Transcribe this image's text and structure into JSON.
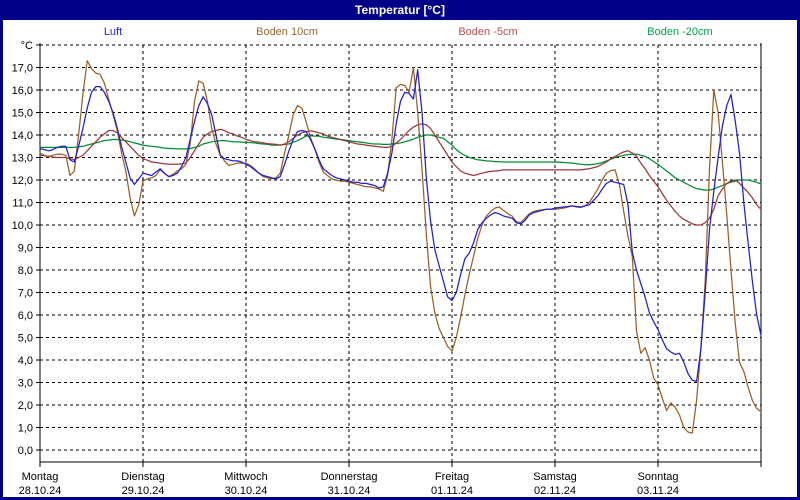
{
  "window": {
    "title": "Temperatur [°C]"
  },
  "colors": {
    "frame": "#000087",
    "titlebar_text": "#ffffff",
    "plot_background": "#ffffff",
    "grid": "#000000"
  },
  "chart_data": {
    "type": "line",
    "title": "Temperatur [°C]",
    "grid": "dashed",
    "legend_position": "top",
    "sampling_hours": 1,
    "y_axis": {
      "unit": "°C",
      "top_value": 18,
      "bottom_value": -0.5,
      "gridline_step": 1,
      "ticks": [
        "17,0",
        "16,0",
        "15,0",
        "14,0",
        "13,0",
        "12,0",
        "11,0",
        "10,0",
        "9,0",
        "8,0",
        "7,0",
        "6,0",
        "5,0",
        "4,0",
        "3,0",
        "2,0",
        "1,0",
        "0,0"
      ]
    },
    "x_axis": {
      "days": [
        {
          "name": "Montag",
          "date": "28.10.24"
        },
        {
          "name": "Dienstag",
          "date": "29.10.24"
        },
        {
          "name": "Mittwoch",
          "date": "30.10.24"
        },
        {
          "name": "Donnerstag",
          "date": "31.10.24"
        },
        {
          "name": "Freitag",
          "date": "01.11.24"
        },
        {
          "name": "Samstag",
          "date": "02.11.24"
        },
        {
          "name": "Sonntag",
          "date": "03.11.24"
        }
      ]
    },
    "series": [
      {
        "name": "Luft",
        "color": "#2020d0",
        "legend_color": "#2222ee",
        "values": [
          13.4,
          13.35,
          13.3,
          13.35,
          13.45,
          13.5,
          13.5,
          12.9,
          12.8,
          13.5,
          14.3,
          15.2,
          15.9,
          16.15,
          16.15,
          15.9,
          15.5,
          15.0,
          14.3,
          13.5,
          12.8,
          12.1,
          11.8,
          12.05,
          12.3,
          12.25,
          12.2,
          12.35,
          12.5,
          12.3,
          12.15,
          12.2,
          12.3,
          12.6,
          13.0,
          13.8,
          14.6,
          15.3,
          15.7,
          15.4,
          14.9,
          14.0,
          13.1,
          12.95,
          12.9,
          12.85,
          12.85,
          12.8,
          12.7,
          12.6,
          12.45,
          12.3,
          12.2,
          12.15,
          12.1,
          12.05,
          12.15,
          12.7,
          13.3,
          13.8,
          14.15,
          14.2,
          14.15,
          13.8,
          13.4,
          12.9,
          12.5,
          12.35,
          12.2,
          12.1,
          12.05,
          12.0,
          11.95,
          11.9,
          11.9,
          11.85,
          11.85,
          11.8,
          11.75,
          11.65,
          11.7,
          12.3,
          13.2,
          14.5,
          15.5,
          15.9,
          15.85,
          15.6,
          16.9,
          15.0,
          12.1,
          10.2,
          8.9,
          8.2,
          7.5,
          6.8,
          6.65,
          7.0,
          7.8,
          8.5,
          8.75,
          9.2,
          9.8,
          10.1,
          10.3,
          10.45,
          10.55,
          10.5,
          10.4,
          10.35,
          10.3,
          10.1,
          10.05,
          10.2,
          10.45,
          10.55,
          10.6,
          10.65,
          10.7,
          10.7,
          10.75,
          10.78,
          10.8,
          10.82,
          10.85,
          10.82,
          10.8,
          10.85,
          10.9,
          11.1,
          11.3,
          11.6,
          11.85,
          11.95,
          11.9,
          11.85,
          11.8,
          10.9,
          8.8,
          8.0,
          7.4,
          6.8,
          6.1,
          5.7,
          5.35,
          4.9,
          4.5,
          4.35,
          4.25,
          4.3,
          3.9,
          3.4,
          3.1,
          3.05,
          4.5,
          7.0,
          9.8,
          11.5,
          13.0,
          14.4,
          15.3,
          15.8,
          14.6,
          13.2,
          11.0,
          9.2,
          7.5,
          6.0,
          5.1
        ]
      },
      {
        "name": "Boden 10cm",
        "color": "#9c5f28",
        "legend_color": "#996633",
        "values": [
          13.2,
          13.1,
          13.05,
          13.1,
          13.15,
          13.15,
          13.1,
          12.2,
          12.4,
          14.0,
          15.8,
          17.3,
          16.95,
          16.75,
          16.7,
          16.3,
          15.6,
          14.9,
          14.2,
          13.2,
          12.4,
          11.2,
          10.4,
          10.9,
          11.95,
          12.05,
          12.1,
          12.2,
          12.45,
          12.3,
          12.15,
          12.25,
          12.4,
          12.5,
          12.7,
          13.6,
          15.5,
          16.4,
          16.3,
          15.5,
          14.3,
          13.6,
          13.1,
          12.85,
          12.65,
          12.7,
          12.75,
          12.75,
          12.75,
          12.65,
          12.5,
          12.3,
          12.15,
          12.1,
          12.05,
          12.1,
          12.3,
          13.2,
          14.0,
          14.9,
          15.3,
          15.2,
          14.6,
          13.9,
          13.4,
          12.8,
          12.35,
          12.2,
          12.05,
          12.0,
          11.95,
          11.95,
          11.9,
          11.85,
          11.8,
          11.75,
          11.7,
          11.7,
          11.65,
          11.6,
          11.5,
          12.2,
          13.8,
          16.1,
          16.25,
          16.2,
          15.9,
          17.0,
          15.0,
          12.5,
          9.6,
          7.3,
          6.1,
          5.4,
          5.0,
          4.6,
          4.4,
          5.0,
          5.9,
          6.9,
          7.8,
          8.6,
          9.4,
          10.0,
          10.4,
          10.6,
          10.75,
          10.8,
          10.65,
          10.5,
          10.4,
          10.15,
          10.1,
          10.3,
          10.5,
          10.6,
          10.65,
          10.68,
          10.7,
          10.7,
          10.7,
          10.72,
          10.75,
          10.8,
          10.85,
          10.8,
          10.78,
          10.85,
          11.0,
          11.3,
          11.6,
          12.0,
          12.3,
          12.42,
          12.45,
          11.8,
          10.6,
          9.5,
          8.6,
          5.3,
          4.3,
          4.55,
          4.0,
          3.2,
          2.9,
          2.3,
          1.75,
          2.1,
          1.9,
          1.55,
          1.0,
          0.8,
          0.75,
          2.2,
          4.5,
          7.5,
          12.5,
          16.0,
          15.0,
          12.8,
          10.5,
          8.0,
          5.6,
          3.9,
          3.5,
          2.8,
          2.2,
          1.85,
          1.7
        ]
      },
      {
        "name": "Boden -5cm",
        "color": "#993838",
        "legend_color": "#b05050",
        "values": [
          13.1,
          13.08,
          13.05,
          13.02,
          13.0,
          13.0,
          13.0,
          12.95,
          12.9,
          13.0,
          13.1,
          13.3,
          13.5,
          13.7,
          13.9,
          14.05,
          14.2,
          14.2,
          14.1,
          13.9,
          13.7,
          13.5,
          13.3,
          13.1,
          12.95,
          12.88,
          12.8,
          12.78,
          12.75,
          12.72,
          12.7,
          12.7,
          12.7,
          12.72,
          12.75,
          13.0,
          13.3,
          13.6,
          13.9,
          14.05,
          14.15,
          14.2,
          14.25,
          14.2,
          14.1,
          14.05,
          13.95,
          13.9,
          13.8,
          13.75,
          13.7,
          13.68,
          13.65,
          13.62,
          13.6,
          13.58,
          13.55,
          13.6,
          13.7,
          13.85,
          14.0,
          14.1,
          14.15,
          14.18,
          14.15,
          14.1,
          14.05,
          13.95,
          13.9,
          13.85,
          13.8,
          13.75,
          13.7,
          13.65,
          13.6,
          13.58,
          13.55,
          13.52,
          13.5,
          13.48,
          13.45,
          13.45,
          13.5,
          13.65,
          13.8,
          14.0,
          14.2,
          14.35,
          14.45,
          14.5,
          14.45,
          14.3,
          14.0,
          13.7,
          13.4,
          13.1,
          12.8,
          12.6,
          12.4,
          12.3,
          12.25,
          12.2,
          12.25,
          12.3,
          12.35,
          12.38,
          12.4,
          12.42,
          12.45,
          12.45,
          12.45,
          12.45,
          12.45,
          12.45,
          12.45,
          12.45,
          12.45,
          12.45,
          12.45,
          12.45,
          12.45,
          12.45,
          12.45,
          12.45,
          12.45,
          12.45,
          12.45,
          12.48,
          12.5,
          12.55,
          12.6,
          12.7,
          12.8,
          12.95,
          13.05,
          13.15,
          13.25,
          13.3,
          13.2,
          13.05,
          12.75,
          12.5,
          12.2,
          11.95,
          11.7,
          11.4,
          11.1,
          10.85,
          10.6,
          10.4,
          10.25,
          10.15,
          10.05,
          10.0,
          10.0,
          10.1,
          10.3,
          10.7,
          11.3,
          11.6,
          11.85,
          11.95,
          12.0,
          11.85,
          11.65,
          11.45,
          11.2,
          10.9,
          10.7
        ]
      },
      {
        "name": "Boden -20cm",
        "color": "#008c32",
        "legend_color": "#00a050",
        "values": [
          13.45,
          13.45,
          13.45,
          13.45,
          13.45,
          13.45,
          13.45,
          13.45,
          13.45,
          13.48,
          13.5,
          13.55,
          13.6,
          13.65,
          13.7,
          13.75,
          13.78,
          13.8,
          13.8,
          13.78,
          13.75,
          13.7,
          13.65,
          13.6,
          13.55,
          13.52,
          13.5,
          13.48,
          13.45,
          13.42,
          13.4,
          13.4,
          13.38,
          13.38,
          13.38,
          13.4,
          13.45,
          13.5,
          13.6,
          13.65,
          13.7,
          13.72,
          13.75,
          13.75,
          13.72,
          13.7,
          13.7,
          13.68,
          13.68,
          13.66,
          13.65,
          13.62,
          13.6,
          13.58,
          13.55,
          13.55,
          13.55,
          13.58,
          13.6,
          13.68,
          13.75,
          13.85,
          13.95,
          13.97,
          13.95,
          13.95,
          13.9,
          13.88,
          13.85,
          13.82,
          13.8,
          13.78,
          13.75,
          13.72,
          13.7,
          13.68,
          13.65,
          13.62,
          13.6,
          13.6,
          13.58,
          13.58,
          13.6,
          13.62,
          13.65,
          13.7,
          13.75,
          13.82,
          13.9,
          13.95,
          14.0,
          14.0,
          13.95,
          13.9,
          13.85,
          13.7,
          13.55,
          13.35,
          13.2,
          13.1,
          13.0,
          12.95,
          12.9,
          12.88,
          12.85,
          12.84,
          12.82,
          12.82,
          12.8,
          12.8,
          12.8,
          12.8,
          12.8,
          12.8,
          12.8,
          12.8,
          12.8,
          12.8,
          12.8,
          12.8,
          12.8,
          12.79,
          12.78,
          12.76,
          12.75,
          12.73,
          12.7,
          12.68,
          12.68,
          12.7,
          12.72,
          12.78,
          12.85,
          12.92,
          13.0,
          13.05,
          13.1,
          13.13,
          13.15,
          13.15,
          13.1,
          13.05,
          12.95,
          12.82,
          12.7,
          12.55,
          12.4,
          12.25,
          12.1,
          12.0,
          11.9,
          11.8,
          11.7,
          11.62,
          11.58,
          11.55,
          11.55,
          11.6,
          11.68,
          11.75,
          11.85,
          11.9,
          11.95,
          12.0,
          12.0,
          12.0,
          11.95,
          11.9,
          11.82
        ]
      }
    ]
  }
}
